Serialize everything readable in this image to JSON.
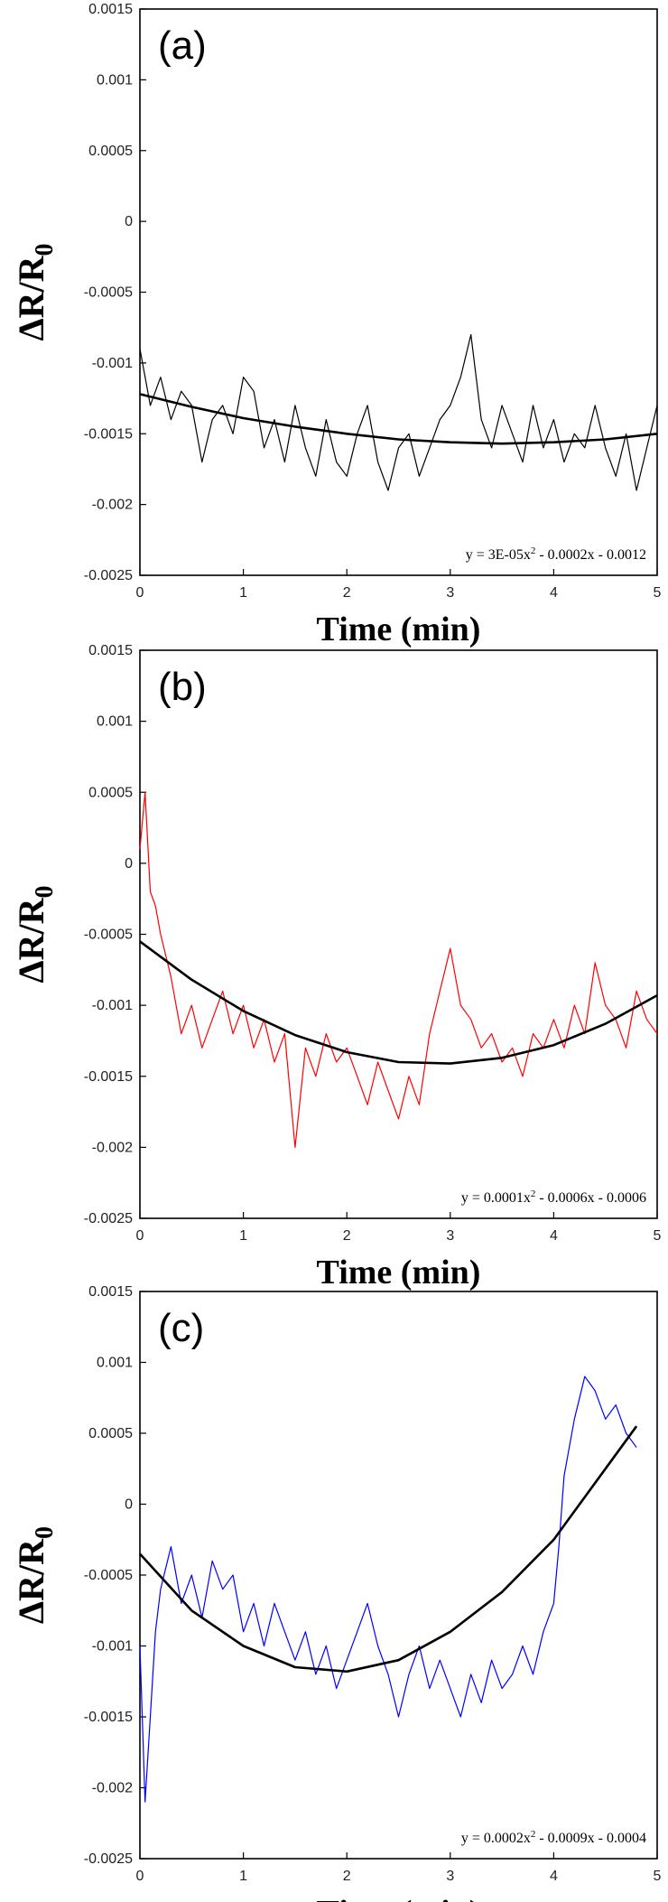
{
  "chart_data": [
    {
      "type": "line",
      "panel_label": "(a)",
      "xlabel": "Time (min)",
      "ylabel": "ΔR/R",
      "ylabel_subscript": "0",
      "xlim": [
        0,
        5
      ],
      "ylim": [
        -0.0025,
        0.0015
      ],
      "x_ticks": [
        "0",
        "1",
        "2",
        "3",
        "4",
        "5"
      ],
      "y_ticks": [
        "0.0015",
        "0.001",
        "0.0005",
        "0",
        "-0.0005",
        "-0.001",
        "-0.0015",
        "-0.002",
        "-0.0025"
      ],
      "grid": false,
      "trendline_equation": "y = 3E-05x² - 0.0002x - 0.0012",
      "series": [
        {
          "name": "measured",
          "color": "#000000",
          "x": [
            0,
            0.1,
            0.2,
            0.3,
            0.4,
            0.5,
            0.6,
            0.7,
            0.8,
            0.9,
            1.0,
            1.1,
            1.2,
            1.3,
            1.4,
            1.5,
            1.6,
            1.7,
            1.8,
            1.9,
            2.0,
            2.1,
            2.2,
            2.3,
            2.4,
            2.5,
            2.6,
            2.7,
            2.8,
            2.9,
            3.0,
            3.1,
            3.2,
            3.3,
            3.4,
            3.5,
            3.6,
            3.7,
            3.8,
            3.9,
            4.0,
            4.1,
            4.2,
            4.3,
            4.4,
            4.5,
            4.6,
            4.7,
            4.8,
            4.9,
            5.0
          ],
          "values": [
            -0.0009,
            -0.0013,
            -0.0011,
            -0.0014,
            -0.0012,
            -0.0013,
            -0.0017,
            -0.0014,
            -0.0013,
            -0.0015,
            -0.0011,
            -0.0012,
            -0.0016,
            -0.0014,
            -0.0017,
            -0.0013,
            -0.0016,
            -0.0018,
            -0.0014,
            -0.0017,
            -0.0018,
            -0.0015,
            -0.0013,
            -0.0017,
            -0.0019,
            -0.0016,
            -0.0015,
            -0.0018,
            -0.0016,
            -0.0014,
            -0.0013,
            -0.0011,
            -0.0008,
            -0.0014,
            -0.0016,
            -0.0013,
            -0.0015,
            -0.0017,
            -0.0013,
            -0.0016,
            -0.0014,
            -0.0017,
            -0.0015,
            -0.0016,
            -0.0013,
            -0.0016,
            -0.0018,
            -0.0015,
            -0.0019,
            -0.0016,
            -0.0013
          ]
        },
        {
          "name": "trendline",
          "color": "#000000",
          "x": [
            0,
            0.5,
            1.0,
            1.5,
            2.0,
            2.5,
            3.0,
            3.5,
            4.0,
            4.5,
            5.0
          ],
          "values": [
            -0.00122,
            -0.00131,
            -0.00139,
            -0.00145,
            -0.0015,
            -0.00154,
            -0.00156,
            -0.00157,
            -0.00156,
            -0.00154,
            -0.0015
          ]
        }
      ]
    },
    {
      "type": "line",
      "panel_label": "(b)",
      "xlabel": "Time (min)",
      "ylabel": "ΔR/R",
      "ylabel_subscript": "0",
      "xlim": [
        0,
        5
      ],
      "ylim": [
        -0.0025,
        0.0015
      ],
      "x_ticks": [
        "0",
        "1",
        "2",
        "3",
        "4",
        "5"
      ],
      "y_ticks": [
        "0.0015",
        "0.001",
        "0.0005",
        "0",
        "-0.0005",
        "-0.001",
        "-0.0015",
        "-0.002",
        "-0.0025"
      ],
      "grid": false,
      "trendline_equation": "y = 0.0001x² - 0.0006x - 0.0006",
      "series": [
        {
          "name": "measured",
          "color": "#ff0000",
          "x": [
            0,
            0.05,
            0.1,
            0.15,
            0.2,
            0.3,
            0.4,
            0.5,
            0.6,
            0.7,
            0.8,
            0.9,
            1.0,
            1.1,
            1.2,
            1.3,
            1.4,
            1.5,
            1.6,
            1.7,
            1.8,
            1.9,
            2.0,
            2.1,
            2.2,
            2.3,
            2.4,
            2.5,
            2.6,
            2.7,
            2.8,
            2.9,
            3.0,
            3.1,
            3.2,
            3.3,
            3.4,
            3.5,
            3.6,
            3.7,
            3.8,
            3.9,
            4.0,
            4.1,
            4.2,
            4.3,
            4.4,
            4.5,
            4.6,
            4.7,
            4.8,
            4.9,
            5.0
          ],
          "values": [
            0.0001,
            0.0005,
            -0.0002,
            -0.0003,
            -0.0005,
            -0.0008,
            -0.0012,
            -0.001,
            -0.0013,
            -0.0011,
            -0.0009,
            -0.0012,
            -0.001,
            -0.0013,
            -0.0011,
            -0.0014,
            -0.0012,
            -0.002,
            -0.0013,
            -0.0015,
            -0.0012,
            -0.0014,
            -0.0013,
            -0.0015,
            -0.0017,
            -0.0014,
            -0.0016,
            -0.0018,
            -0.0015,
            -0.0017,
            -0.0012,
            -0.0009,
            -0.0006,
            -0.001,
            -0.0011,
            -0.0013,
            -0.0012,
            -0.0014,
            -0.0013,
            -0.0015,
            -0.0012,
            -0.0013,
            -0.0011,
            -0.0013,
            -0.001,
            -0.0012,
            -0.0007,
            -0.001,
            -0.0011,
            -0.0013,
            -0.0009,
            -0.0011,
            -0.0012
          ]
        },
        {
          "name": "trendline",
          "color": "#000000",
          "x": [
            0,
            0.5,
            1.0,
            1.5,
            2.0,
            2.5,
            3.0,
            3.5,
            4.0,
            4.5,
            5.0
          ],
          "values": [
            -0.00055,
            -0.00082,
            -0.00104,
            -0.00121,
            -0.00133,
            -0.0014,
            -0.00141,
            -0.00137,
            -0.00128,
            -0.00113,
            -0.00093
          ]
        }
      ]
    },
    {
      "type": "line",
      "panel_label": "(c)",
      "xlabel": "Time (min)",
      "ylabel": "ΔR/R",
      "ylabel_subscript": "0",
      "xlim": [
        0,
        5
      ],
      "ylim": [
        -0.0025,
        0.0015
      ],
      "x_ticks": [
        "0",
        "1",
        "2",
        "3",
        "4",
        "5"
      ],
      "y_ticks": [
        "0.0015",
        "0.001",
        "0.0005",
        "0",
        "-0.0005",
        "-0.001",
        "-0.0015",
        "-0.002",
        "-0.0025"
      ],
      "grid": false,
      "trendline_equation": "y = 0.0002x² - 0.0009x - 0.0004",
      "series": [
        {
          "name": "measured",
          "color": "#0000ff",
          "x": [
            0,
            0.05,
            0.1,
            0.15,
            0.2,
            0.3,
            0.4,
            0.5,
            0.6,
            0.7,
            0.8,
            0.9,
            1.0,
            1.1,
            1.2,
            1.3,
            1.4,
            1.5,
            1.6,
            1.7,
            1.8,
            1.9,
            2.0,
            2.1,
            2.2,
            2.3,
            2.4,
            2.5,
            2.6,
            2.7,
            2.8,
            2.9,
            3.0,
            3.1,
            3.2,
            3.3,
            3.4,
            3.5,
            3.6,
            3.7,
            3.8,
            3.9,
            4.0,
            4.05,
            4.1,
            4.2,
            4.3,
            4.4,
            4.5,
            4.6,
            4.7,
            4.8
          ],
          "values": [
            -0.001,
            -0.0021,
            -0.0015,
            -0.0009,
            -0.0006,
            -0.0003,
            -0.0007,
            -0.0005,
            -0.0008,
            -0.0004,
            -0.0006,
            -0.0005,
            -0.0009,
            -0.0007,
            -0.001,
            -0.0007,
            -0.0009,
            -0.0011,
            -0.0009,
            -0.0012,
            -0.001,
            -0.0013,
            -0.0011,
            -0.0009,
            -0.0007,
            -0.001,
            -0.0012,
            -0.0015,
            -0.0012,
            -0.001,
            -0.0013,
            -0.0011,
            -0.0013,
            -0.0015,
            -0.0012,
            -0.0014,
            -0.0011,
            -0.0013,
            -0.0012,
            -0.001,
            -0.0012,
            -0.0009,
            -0.0007,
            -0.0003,
            0.0002,
            0.0006,
            0.0009,
            0.0008,
            0.0006,
            0.0007,
            0.0005,
            0.0004
          ]
        },
        {
          "name": "trendline",
          "color": "#000000",
          "x": [
            0,
            0.5,
            1.0,
            1.5,
            2.0,
            2.5,
            3.0,
            3.5,
            4.0,
            4.5,
            4.8
          ],
          "values": [
            -0.00035,
            -0.00075,
            -0.001,
            -0.00115,
            -0.00118,
            -0.0011,
            -0.0009,
            -0.00062,
            -0.00025,
            0.00025,
            0.00055
          ]
        }
      ]
    }
  ]
}
